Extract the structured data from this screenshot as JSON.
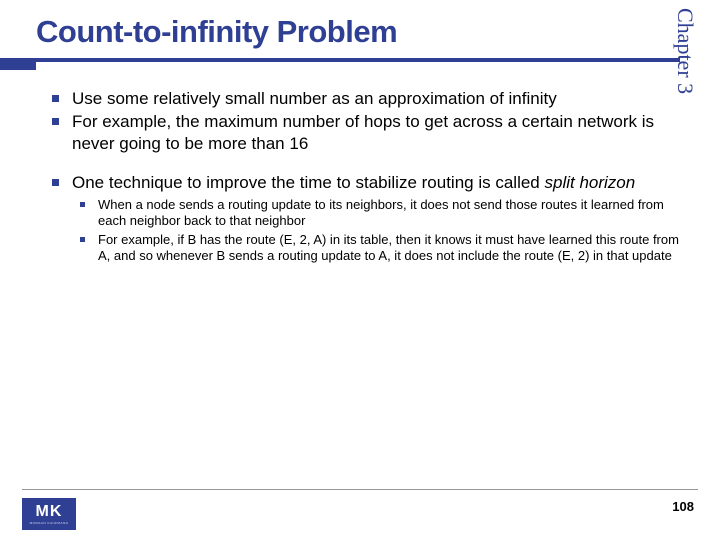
{
  "title": "Count-to-infinity Problem",
  "side_label": "Chapter 3",
  "bullets": {
    "level1": [
      "Use some relatively small number as an approximation of infinity",
      "For example, the maximum number of hops to get across a certain network is never going to be more than 16"
    ],
    "level1_gap_prefix": "One technique to improve the time to stabilize routing is called ",
    "level1_gap_italic": "split horizon",
    "level2": [
      "When a node sends a routing update to its neighbors, it does not send those routes it learned from each neighbor back to that neighbor",
      "For example, if B has the route (E, 2, A) in its table, then it knows it must have learned this route from A, and so whenever B sends a routing update to A, it does not include the route (E, 2) in that update"
    ]
  },
  "logo": {
    "main": "MK",
    "sub": "MORGAN KAUFMANN"
  },
  "page_number": "108",
  "colors": {
    "accent": "#2f3f93",
    "text": "#000000",
    "bg": "#ffffff",
    "footer_line": "#999999"
  }
}
